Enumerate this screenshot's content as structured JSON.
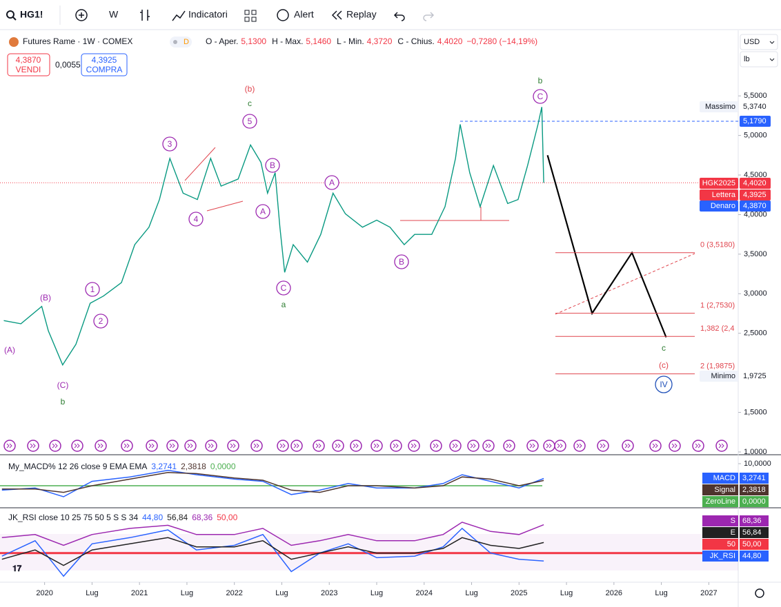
{
  "toolbar": {
    "symbol": "HG1!",
    "interval": "W",
    "indicators": "Indicatori",
    "alert": "Alert",
    "replay": "Replay",
    "currency": "USD",
    "unit": "lb"
  },
  "header": {
    "title": "Futures Rame · 1W · COMEX",
    "badge": "D",
    "ohlc": [
      {
        "label": "O - Aper.",
        "value": "5,1300"
      },
      {
        "label": "H - Max.",
        "value": "5,1460"
      },
      {
        "label": "L - Min.",
        "value": "4,3720"
      },
      {
        "label": "C - Chius.",
        "value": "4,4020"
      }
    ],
    "change": "−0,7280 (−14,19%)"
  },
  "trade": {
    "sell_price": "4,3870",
    "sell": "VENDI",
    "spread": "0,0055",
    "buy_price": "4,3925",
    "buy": "COMPRA"
  },
  "annotations": [
    "(A)",
    "(B)",
    "(C)",
    "b",
    "1",
    "2",
    "3",
    "4",
    "5",
    "c",
    "(b)",
    "B",
    "A",
    "C",
    "a",
    "A",
    "B",
    "C",
    "b",
    "c",
    "(c)",
    "IV"
  ],
  "chart_data": [
    {
      "type": "line",
      "color": "#089981",
      "x": [
        2019.57,
        2019.75,
        2019.97,
        2020.04,
        2020.19,
        2020.33,
        2020.48,
        2020.62,
        2020.81,
        2020.95,
        2021.1,
        2021.21,
        2021.32,
        2021.46,
        2021.61,
        2021.75,
        2021.86,
        2022.04,
        2022.17,
        2022.28,
        2022.35,
        2022.43,
        2022.48,
        2022.53,
        2022.62,
        2022.77,
        2022.91,
        2023.04,
        2023.17,
        2023.35,
        2023.5,
        2023.64,
        2023.79,
        2023.9,
        2024.08,
        2024.22,
        2024.33,
        2024.38,
        2024.48,
        2024.59,
        2024.73,
        2024.88,
        2024.99,
        2025.09,
        2025.2,
        2025.24,
        2025.26
      ],
      "values": [
        2.66,
        2.62,
        2.84,
        2.53,
        2.1,
        2.36,
        2.88,
        2.97,
        3.14,
        3.62,
        3.84,
        4.19,
        4.71,
        4.27,
        4.19,
        4.71,
        4.36,
        4.45,
        4.88,
        4.66,
        4.27,
        4.53,
        3.84,
        3.27,
        3.62,
        3.4,
        3.75,
        4.27,
        4.01,
        3.84,
        3.93,
        3.84,
        3.62,
        3.75,
        3.75,
        4.1,
        4.71,
        5.14,
        4.53,
        4.1,
        4.62,
        4.14,
        4.19,
        4.62,
        5.14,
        5.36,
        4.402
      ],
      "projection": {
        "x": [
          2025.3,
          2025.77,
          2026.19,
          2026.55
        ],
        "values": [
          4.75,
          2.753,
          3.518,
          2.45
        ],
        "color": "#000000"
      },
      "fib_color": "#e0444d",
      "fib_levels": [
        {
          "label": "0 (3,5180)",
          "value": 3.518
        },
        {
          "label": "1 (2,7530)",
          "value": 2.753
        },
        {
          "label": "1,382 (2,4",
          "value": 2.461
        },
        {
          "label": "2 (1,9875)",
          "value": 1.9875
        }
      ],
      "price_labels": [
        {
          "name": "Massimo",
          "value": 5.374,
          "label": "5,3740"
        },
        {
          "value": 5.179,
          "label": "5,1790"
        },
        {
          "name": "HGK2025",
          "value": 4.402,
          "label": "4,4020"
        },
        {
          "name": "Lettera",
          "value": 4.3925,
          "label": "4,3925"
        },
        {
          "name": "Denaro",
          "value": 4.387,
          "label": "4,3870"
        },
        {
          "name": "Minimo",
          "value": 1.9725,
          "label": "1,9725"
        }
      ],
      "xlim": [
        2019.53,
        2027.31
      ],
      "xticks": [
        {
          "value": 2020,
          "label": "2020"
        },
        {
          "value": 2020.5,
          "label": "Lug"
        },
        {
          "value": 2021,
          "label": "2021"
        },
        {
          "value": 2021.5,
          "label": "Lug"
        },
        {
          "value": 2022,
          "label": "2022"
        },
        {
          "value": 2022.5,
          "label": "Lug"
        },
        {
          "value": 2023,
          "label": "2023"
        },
        {
          "value": 2023.5,
          "label": "Lug"
        },
        {
          "value": 2024,
          "label": "2024"
        },
        {
          "value": 2024.5,
          "label": "Lug"
        },
        {
          "value": 2025,
          "label": "2025"
        },
        {
          "value": 2025.5,
          "label": "Lug"
        },
        {
          "value": 2026,
          "label": "2026"
        },
        {
          "value": 2026.5,
          "label": "Lug"
        },
        {
          "value": 2027,
          "label": "2027"
        }
      ],
      "ylim": [
        0.965,
        6.32
      ],
      "yticks": [
        {
          "value": 5.5,
          "label": "5,5000"
        },
        {
          "value": 5,
          "label": "5,0000"
        },
        {
          "value": 4.5,
          "label": "4,5000"
        },
        {
          "value": 4,
          "label": "4,0000"
        },
        {
          "value": 3.5,
          "label": "3,5000"
        },
        {
          "value": 3,
          "label": "3,0000"
        },
        {
          "value": 2.5,
          "label": "2,5000"
        },
        {
          "value": 1.5,
          "label": "1,5000"
        },
        {
          "value": 1,
          "label": "1,0000"
        }
      ],
      "grid": false
    },
    {
      "type": "line",
      "title": "My_MACD% 12 26 close 9 EMA EMA",
      "x": [
        2019.55,
        2019.9,
        2020.2,
        2020.5,
        2020.9,
        2021.3,
        2021.6,
        2022.0,
        2022.3,
        2022.6,
        2022.9,
        2023.2,
        2023.5,
        2023.9,
        2024.2,
        2024.4,
        2024.7,
        2025.0,
        2025.26
      ],
      "series": [
        {
          "name": "MACD",
          "color": "#2962ff",
          "values": [
            -2,
            -1,
            -5,
            2,
            4,
            7,
            5,
            3,
            2,
            -4,
            -2,
            1,
            -1,
            -1,
            1,
            5,
            2,
            -1,
            3.2741
          ],
          "value_labels": [
            null,
            null,
            null,
            null,
            null,
            null,
            null,
            null,
            null,
            null,
            null,
            null,
            null,
            null,
            null,
            null,
            null,
            null,
            "3,2741"
          ]
        },
        {
          "name": "Signal",
          "color": "#4e342e",
          "values": [
            -1.5,
            -1.5,
            -3,
            0,
            3,
            6,
            5.5,
            3.5,
            2.5,
            -2,
            -3,
            0,
            0,
            -1,
            0,
            4,
            3,
            0,
            2.3818
          ],
          "value_labels": [
            null,
            null,
            null,
            null,
            null,
            null,
            null,
            null,
            null,
            null,
            null,
            null,
            null,
            null,
            null,
            null,
            null,
            null,
            "2,3818"
          ]
        }
      ],
      "level": {
        "name": "ZeroLine",
        "value": 0,
        "label": "0,0000",
        "color": "#4caf50"
      },
      "ylim": [
        -10,
        13.44
      ],
      "yticks": [
        {
          "value": 10,
          "label": "10,0000"
        }
      ]
    },
    {
      "type": "line",
      "title": "JK_RSI close 10 25 75 50 5 S S 34",
      "x": [
        2019.55,
        2019.9,
        2020.2,
        2020.5,
        2020.9,
        2021.3,
        2021.6,
        2022.0,
        2022.3,
        2022.6,
        2022.9,
        2023.2,
        2023.5,
        2023.9,
        2024.2,
        2024.4,
        2024.7,
        2025.0,
        2025.26
      ],
      "series": [
        {
          "name": "JK_RSI",
          "color": "#2962ff",
          "values": [
            48,
            58,
            35,
            56,
            60,
            65,
            52,
            55,
            62,
            38,
            50,
            56,
            47,
            48,
            54,
            66,
            50,
            46,
            44.8
          ],
          "value_labels": [
            null,
            null,
            null,
            null,
            null,
            null,
            null,
            null,
            null,
            null,
            null,
            null,
            null,
            null,
            null,
            null,
            null,
            null,
            "44,80"
          ]
        },
        {
          "name": "E",
          "color": "#212121",
          "values": [
            46,
            52,
            42,
            52,
            56,
            60,
            54,
            54,
            58,
            46,
            50,
            54,
            50,
            50,
            53,
            60,
            55,
            53,
            56.84
          ],
          "value_labels": [
            null,
            null,
            null,
            null,
            null,
            null,
            null,
            null,
            null,
            null,
            null,
            null,
            null,
            null,
            null,
            null,
            null,
            null,
            "56,84"
          ]
        },
        {
          "name": "S",
          "color": "#9c27b0",
          "values": [
            60,
            62,
            55,
            62,
            66,
            68,
            62,
            62,
            66,
            55,
            58,
            62,
            58,
            58,
            62,
            70,
            64,
            62,
            68.36
          ],
          "value_labels": [
            null,
            null,
            null,
            null,
            null,
            null,
            null,
            null,
            null,
            null,
            null,
            null,
            null,
            null,
            null,
            null,
            null,
            null,
            "68,36"
          ]
        }
      ],
      "level": {
        "name": "50",
        "value": 50,
        "label": "50,00",
        "color": "#f23645"
      },
      "ylim": [
        32,
        78
      ]
    }
  ]
}
